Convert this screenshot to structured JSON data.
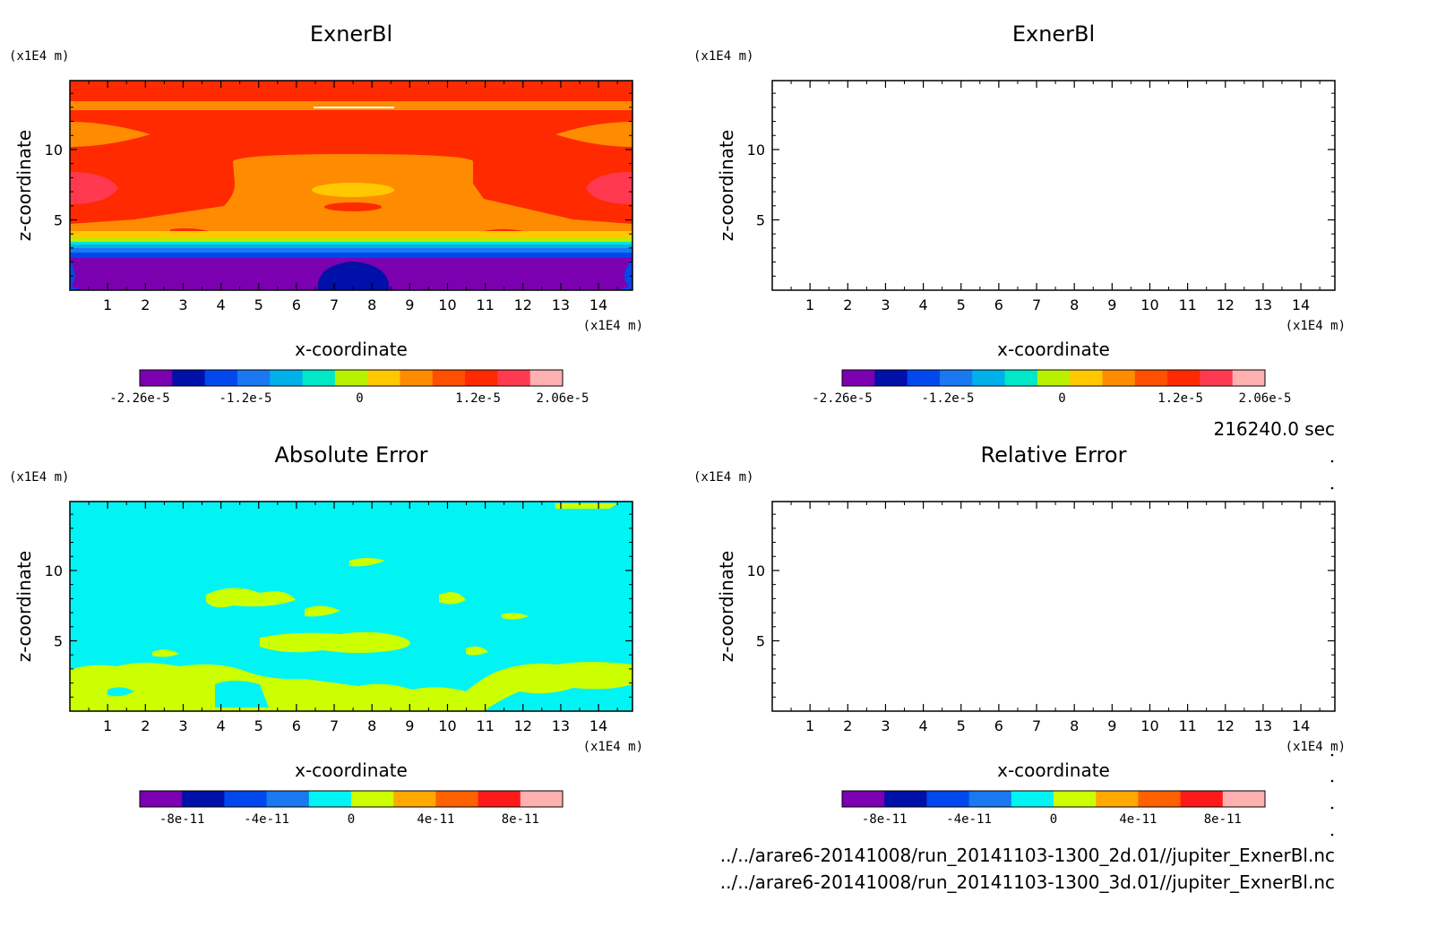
{
  "time_label": "216240.0 sec",
  "files": [
    "../../arare6-20141008/run_20141103-1300_2d.01//jupiter_ExnerBl.nc",
    "../../arare6-20141008/run_20141103-1300_3d.01//jupiter_ExnerBl.nc"
  ],
  "colors": {
    "field": [
      "#7a00b0",
      "#0010a8",
      "#0048ee",
      "#1a78f0",
      "#00b0ea",
      "#00e8c8",
      "#b8f000",
      "#ffc800",
      "#ff8c00",
      "#ff5000",
      "#ff2a00",
      "#ff3a50",
      "#ffb0b0"
    ],
    "error": [
      "#7a00b0",
      "#0010a8",
      "#0048ee",
      "#1a78f0",
      "#00f4f4",
      "#ccff00",
      "#ffa800",
      "#ff6000",
      "#ff1a1a",
      "#ffb0b0"
    ]
  },
  "chart_data": [
    {
      "type": "heatmap",
      "title": "ExnerBl",
      "xlabel": "x-coordinate",
      "ylabel": "z-coordinate",
      "x_unit": "(x1E4 m)",
      "y_unit": "(x1E4 m)",
      "xlim": [
        0,
        14.9
      ],
      "ylim": [
        0,
        14.9
      ],
      "xticks": [
        1,
        2,
        3,
        4,
        5,
        6,
        7,
        8,
        9,
        10,
        11,
        12,
        13,
        14
      ],
      "yticks": [
        5,
        10
      ],
      "colorbar_ticks": [
        "-2.26e-5",
        "-1.2e-5",
        "0",
        "1.2e-5",
        "2.06e-5"
      ]
    },
    {
      "type": "heatmap",
      "title": "ExnerBl",
      "xlabel": "x-coordinate",
      "ylabel": "z-coordinate",
      "x_unit": "(x1E4 m)",
      "y_unit": "(x1E4 m)",
      "xlim": [
        0,
        14.9
      ],
      "ylim": [
        0,
        14.9
      ],
      "xticks": [
        1,
        2,
        3,
        4,
        5,
        6,
        7,
        8,
        9,
        10,
        11,
        12,
        13,
        14
      ],
      "yticks": [
        5,
        10
      ],
      "colorbar_ticks": [
        "-2.26e-5",
        "-1.2e-5",
        "0",
        "1.2e-5",
        "2.06e-5"
      ]
    },
    {
      "type": "heatmap",
      "title": "Absolute Error",
      "xlabel": "x-coordinate",
      "ylabel": "z-coordinate",
      "x_unit": "(x1E4 m)",
      "y_unit": "(x1E4 m)",
      "xlim": [
        0,
        14.9
      ],
      "ylim": [
        0,
        14.9
      ],
      "xticks": [
        1,
        2,
        3,
        4,
        5,
        6,
        7,
        8,
        9,
        10,
        11,
        12,
        13,
        14
      ],
      "yticks": [
        5,
        10
      ],
      "colorbar_ticks": [
        "-8e-11",
        "-4e-11",
        "0",
        "4e-11",
        "8e-11"
      ]
    },
    {
      "type": "heatmap",
      "title": "Relative Error",
      "xlabel": "x-coordinate",
      "ylabel": "z-coordinate",
      "x_unit": "(x1E4 m)",
      "y_unit": "(x1E4 m)",
      "xlim": [
        0,
        14.9
      ],
      "ylim": [
        0,
        14.9
      ],
      "xticks": [
        1,
        2,
        3,
        4,
        5,
        6,
        7,
        8,
        9,
        10,
        11,
        12,
        13,
        14
      ],
      "yticks": [
        5,
        10
      ],
      "colorbar_ticks": [
        "-8e-11",
        "-4e-11",
        "0",
        "4e-11",
        "8e-11"
      ]
    }
  ]
}
